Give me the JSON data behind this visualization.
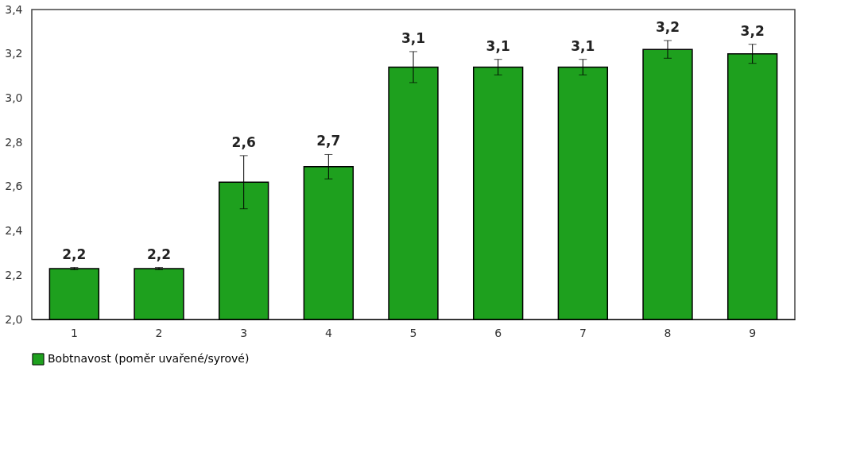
{
  "chart_data": {
    "type": "bar",
    "categories": [
      "1",
      "2",
      "3",
      "4",
      "5",
      "6",
      "7",
      "8",
      "9"
    ],
    "series": [
      {
        "name": "Bobtnavost (poměr uvařené/syrové)",
        "color": "#1ea01e",
        "values": [
          2.23,
          2.23,
          2.62,
          2.69,
          3.14,
          3.14,
          3.14,
          3.22,
          3.2
        ],
        "errors": [
          0.005,
          0.005,
          0.12,
          0.055,
          0.07,
          0.035,
          0.035,
          0.04,
          0.043
        ],
        "value_labels": [
          "2,2",
          "2,2",
          "2,6",
          "2,7",
          "3,1",
          "3,1",
          "3,1",
          "3,2",
          "3,2"
        ]
      }
    ],
    "ylim": [
      2.0,
      3.4
    ],
    "yticks": [
      {
        "value": 2.0,
        "label": "2,0"
      },
      {
        "value": 2.2,
        "label": "2,2"
      },
      {
        "value": 2.4,
        "label": "2,4"
      },
      {
        "value": 2.6,
        "label": "2,6"
      },
      {
        "value": 2.8,
        "label": "2,8"
      },
      {
        "value": 3.0,
        "label": "3,0"
      },
      {
        "value": 3.2,
        "label": "3,2"
      },
      {
        "value": 3.4,
        "label": "3,4"
      }
    ],
    "grid": false,
    "legend": "bottom"
  }
}
